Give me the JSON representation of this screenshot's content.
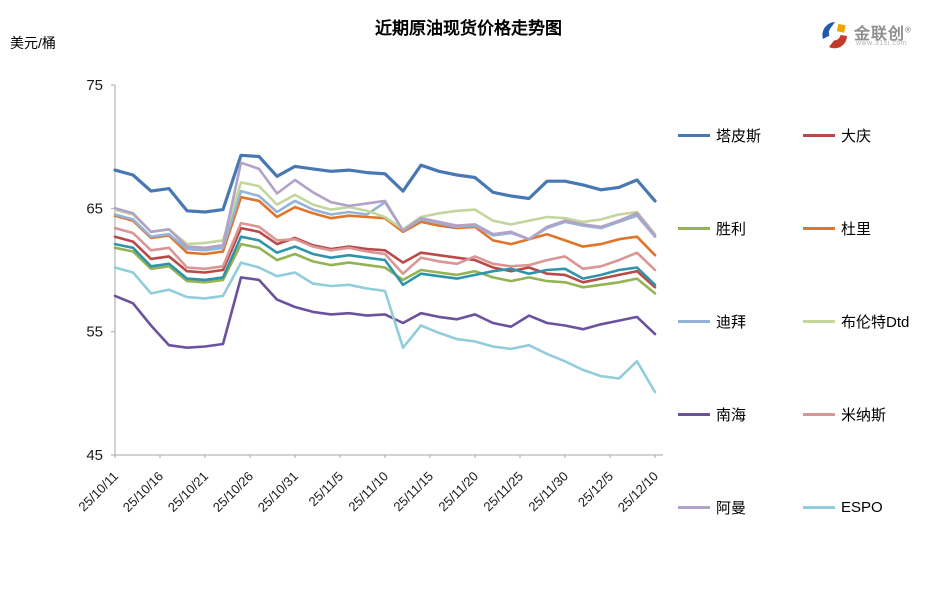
{
  "title": "近期原油现货价格走势图",
  "y_axis_unit": "美元/桶",
  "logo": {
    "brand": "金联创",
    "registered": "®",
    "subtext": "www.315i.com",
    "colors": {
      "blue": "#1f5ca9",
      "red": "#c23a2b",
      "yellow": "#f0a500"
    }
  },
  "chart_data": {
    "type": "line",
    "title": "近期原油现货价格走势图",
    "ylabel": "美元/桶",
    "xlabel": "",
    "ylim": [
      45,
      75
    ],
    "y_ticks": [
      75,
      65,
      55,
      45
    ],
    "grid": false,
    "legend_position": "right",
    "x_tick_labels": [
      "25/10/11",
      "25/10/16",
      "25/10/21",
      "25/10/26",
      "25/10/31",
      "25/11/5",
      "25/11/10",
      "25/11/15",
      "25/11/20",
      "25/11/25",
      "25/11/30",
      "25/12/5",
      "25/12/10"
    ],
    "x_days": [
      0,
      2,
      4,
      6,
      8,
      10,
      12,
      14,
      16,
      18,
      20,
      22,
      24,
      26,
      28,
      30,
      32,
      34,
      36,
      38,
      40,
      42,
      44,
      46,
      48,
      50,
      52,
      54,
      56,
      58,
      60
    ],
    "x_span_days": 60,
    "legend": {
      "columns": 2,
      "items": [
        {
          "label": "塔皮斯",
          "color": "#4878b4"
        },
        {
          "label": "大庆",
          "color": "#b94a48"
        },
        {
          "label": "胜利",
          "color": "#94b353"
        },
        {
          "label": "杜里",
          "color": "#e0742a"
        },
        {
          "label": "迪拜",
          "color": "#95b3d7"
        },
        {
          "label": "布伦特Dtd",
          "color": "#c3d69b"
        },
        {
          "label": "南海",
          "color": "#6b529e"
        },
        {
          "label": "米纳斯",
          "color": "#d99694"
        },
        {
          "label": "阿曼",
          "color": "#b2a2c7"
        },
        {
          "label": "ESPO",
          "color": "#92cddc"
        }
      ]
    },
    "series": [
      {
        "name": "塔皮斯",
        "color": "#4878b4",
        "width": 3.2,
        "values": [
          68.1,
          67.7,
          66.4,
          66.6,
          64.8,
          64.7,
          64.9,
          69.3,
          69.2,
          67.6,
          68.4,
          68.2,
          68.0,
          68.1,
          67.9,
          67.8,
          66.4,
          68.5,
          68.0,
          67.7,
          67.5,
          66.3,
          66.0,
          65.8,
          67.2,
          67.2,
          66.9,
          66.5,
          66.7,
          67.3,
          65.6
        ]
      },
      {
        "name": "大庆",
        "color": "#b94a48",
        "width": 2.6,
        "values": [
          62.7,
          62.3,
          60.9,
          61.1,
          59.9,
          59.8,
          60.0,
          63.4,
          63.1,
          62.1,
          62.6,
          62.0,
          61.7,
          61.9,
          61.7,
          61.6,
          60.6,
          61.4,
          61.2,
          61.0,
          60.8,
          60.2,
          59.9,
          60.2,
          59.7,
          59.6,
          59.0,
          59.3,
          59.6,
          59.9,
          58.6
        ]
      },
      {
        "name": "胜利",
        "color": "#94b353",
        "width": 2.6,
        "values": [
          61.8,
          61.5,
          60.1,
          60.3,
          59.1,
          59.0,
          59.2,
          62.1,
          61.8,
          60.8,
          61.3,
          60.7,
          60.4,
          60.6,
          60.4,
          60.2,
          59.2,
          60.0,
          59.8,
          59.6,
          59.9,
          59.4,
          59.1,
          59.4,
          59.1,
          59.0,
          58.6,
          58.8,
          59.0,
          59.3,
          58.1
        ]
      },
      {
        "name": "杜里",
        "color": "#e0742a",
        "width": 2.6,
        "values": [
          64.4,
          64.0,
          62.6,
          62.8,
          61.4,
          61.3,
          61.5,
          65.9,
          65.6,
          64.3,
          65.1,
          64.6,
          64.2,
          64.4,
          64.3,
          64.2,
          63.1,
          63.9,
          63.6,
          63.4,
          63.5,
          62.4,
          62.1,
          62.5,
          62.9,
          62.4,
          61.9,
          62.1,
          62.5,
          62.7,
          61.2
        ]
      },
      {
        "name": "迪拜",
        "color": "#95b3d7",
        "width": 2.6,
        "values": [
          64.5,
          64.1,
          62.7,
          62.9,
          61.7,
          61.6,
          61.8,
          66.4,
          66.0,
          64.7,
          65.6,
          64.9,
          64.5,
          64.7,
          64.5,
          65.5,
          63.2,
          64.1,
          63.8,
          63.5,
          63.6,
          62.8,
          63.0,
          62.5,
          63.4,
          63.9,
          63.6,
          63.4,
          63.9,
          64.4,
          62.7
        ]
      },
      {
        "name": "布伦特Dtd",
        "color": "#c3d69b",
        "width": 2.6,
        "values": [
          64.9,
          64.5,
          63.1,
          63.3,
          62.1,
          62.2,
          62.4,
          67.1,
          66.8,
          65.3,
          66.1,
          65.3,
          64.9,
          65.1,
          64.8,
          64.3,
          63.3,
          64.3,
          64.6,
          64.8,
          64.9,
          64.0,
          63.7,
          64.0,
          64.3,
          64.2,
          63.9,
          64.1,
          64.5,
          64.7,
          62.9
        ]
      },
      {
        "name": "南海",
        "color": "#6b529e",
        "width": 2.6,
        "values": [
          57.9,
          57.3,
          55.5,
          53.9,
          53.7,
          53.8,
          54.0,
          59.4,
          59.2,
          57.6,
          57.0,
          56.6,
          56.4,
          56.5,
          56.3,
          56.4,
          55.7,
          56.5,
          56.2,
          56.0,
          56.4,
          55.7,
          55.4,
          56.3,
          55.7,
          55.5,
          55.2,
          55.6,
          55.9,
          56.2,
          54.8
        ]
      },
      {
        "name": "米纳斯",
        "color": "#d99694",
        "width": 2.6,
        "values": [
          63.4,
          63.0,
          61.6,
          61.8,
          60.2,
          60.1,
          60.3,
          63.8,
          63.5,
          62.4,
          62.5,
          61.9,
          61.6,
          61.8,
          61.5,
          61.3,
          59.7,
          61.0,
          60.7,
          60.5,
          61.1,
          60.5,
          60.3,
          60.4,
          60.8,
          61.1,
          60.1,
          60.3,
          60.8,
          61.4,
          60.0
        ]
      },
      {
        "name": "阿曼",
        "color": "#b2a2c7",
        "width": 2.6,
        "values": [
          65.0,
          64.6,
          63.1,
          63.3,
          61.9,
          61.8,
          62.0,
          68.7,
          68.2,
          66.2,
          67.3,
          66.3,
          65.5,
          65.2,
          65.4,
          65.6,
          63.2,
          64.2,
          63.9,
          63.6,
          63.7,
          62.9,
          63.1,
          62.5,
          63.5,
          64.0,
          63.7,
          63.5,
          64.0,
          64.6,
          62.8
        ]
      },
      {
        "name": "ESPO",
        "color": "#92cddc",
        "width": 2.6,
        "values": [
          60.2,
          59.8,
          58.1,
          58.4,
          57.8,
          57.7,
          57.9,
          60.6,
          60.2,
          59.5,
          59.8,
          58.9,
          58.7,
          58.8,
          58.5,
          58.3,
          53.7,
          55.5,
          54.9,
          54.4,
          54.2,
          53.8,
          53.6,
          53.9,
          53.2,
          52.6,
          51.9,
          51.4,
          51.2,
          52.6,
          50.1
        ]
      },
      {
        "name": "",
        "in_legend": false,
        "color": "#2e94a9",
        "width": 2.6,
        "values": [
          62.1,
          61.8,
          60.3,
          60.5,
          59.3,
          59.2,
          59.4,
          62.7,
          62.4,
          61.4,
          61.9,
          61.3,
          61.0,
          61.2,
          61.0,
          60.8,
          58.8,
          59.7,
          59.5,
          59.3,
          59.6,
          59.9,
          60.1,
          59.7,
          60.0,
          60.1,
          59.3,
          59.6,
          60.0,
          60.2,
          58.8
        ]
      }
    ]
  }
}
